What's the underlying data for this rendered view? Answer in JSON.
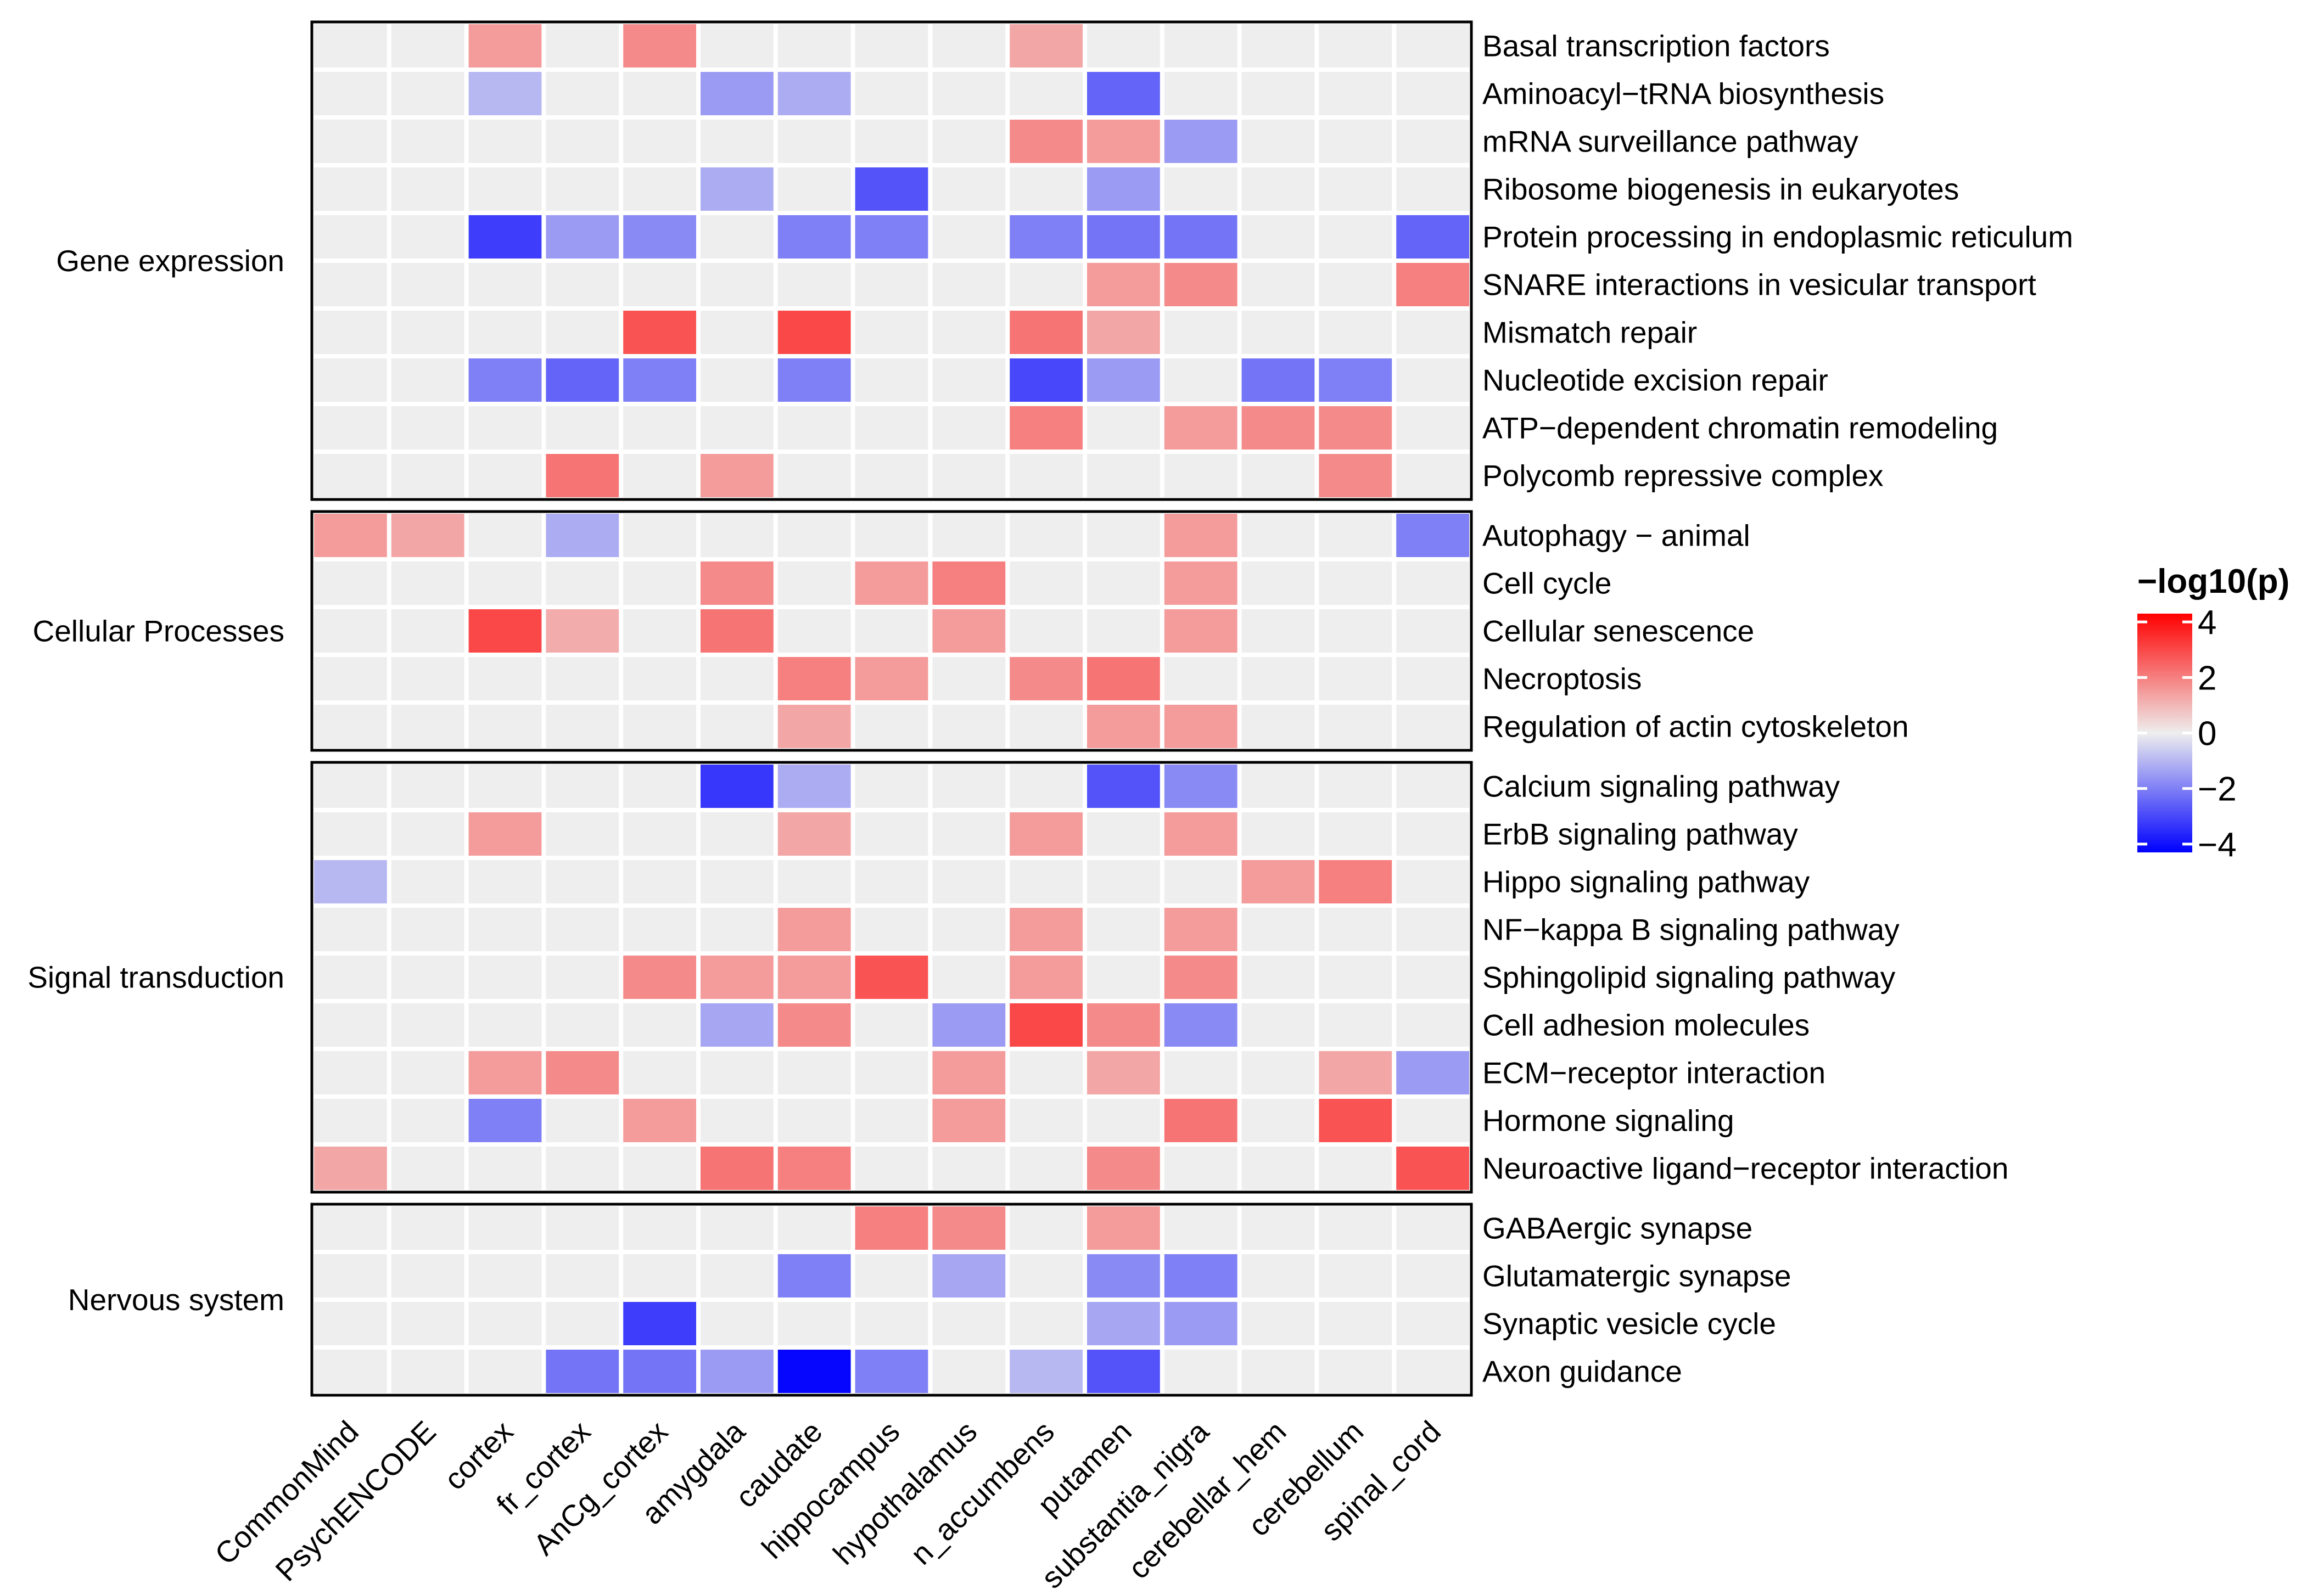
{
  "chart_data": {
    "type": "heatmap",
    "columns": [
      "CommonMind",
      "PsychENCODE",
      "cortex",
      "fr_cortex",
      "AnCg_cortex",
      "amygdala",
      "caudate",
      "hippocampus",
      "hypothalamus",
      "n_accumbens",
      "putamen",
      "substantia_nigra",
      "cerebellar_hem",
      "cerebellum",
      "spinal_cord"
    ],
    "groups": [
      {
        "name": "Gene expression",
        "rows": [
          {
            "name": "Basal transcription factors",
            "values": [
              0,
              0,
              1.5,
              0,
              1.8,
              0,
              0,
              0,
              0,
              1.3,
              0,
              0,
              0,
              0,
              0
            ]
          },
          {
            "name": "Aminoacyl−tRNA biosynthesis",
            "values": [
              0,
              0,
              -1.0,
              0,
              0,
              -1.5,
              -1.2,
              0,
              0,
              0,
              -2.5,
              0,
              0,
              0,
              0
            ]
          },
          {
            "name": "mRNA surveillance pathway",
            "values": [
              0,
              0,
              0,
              0,
              0,
              0,
              0,
              0,
              0,
              1.8,
              1.5,
              -1.5,
              0,
              0,
              0
            ]
          },
          {
            "name": "Ribosome biogenesis in eukaryotes",
            "values": [
              0,
              0,
              0,
              0,
              0,
              -1.2,
              0,
              -2.8,
              0,
              0,
              -1.5,
              0,
              0,
              0,
              0
            ]
          },
          {
            "name": "Protein processing in endoplasmic reticulum",
            "values": [
              0,
              0,
              -3.2,
              -1.5,
              -1.8,
              0,
              -2.0,
              -2.0,
              0,
              -2.0,
              -2.2,
              -2.2,
              0,
              0,
              -2.5
            ]
          },
          {
            "name": "SNARE interactions in vesicular transport",
            "values": [
              0,
              0,
              0,
              0,
              0,
              0,
              0,
              0,
              0,
              0,
              1.5,
              1.8,
              0,
              0,
              2.0
            ]
          },
          {
            "name": "Mismatch repair",
            "values": [
              0,
              0,
              0,
              0,
              2.8,
              0,
              3.0,
              0,
              0,
              2.2,
              1.3,
              0,
              0,
              0,
              0
            ]
          },
          {
            "name": "Nucleotide excision repair",
            "values": [
              0,
              0,
              -2.0,
              -2.5,
              -2.0,
              0,
              -2.0,
              0,
              0,
              -3.0,
              -1.5,
              0,
              -2.2,
              -2.0,
              0
            ]
          },
          {
            "name": "ATP−dependent chromatin remodeling",
            "values": [
              0,
              0,
              0,
              0,
              0,
              0,
              0,
              0,
              0,
              2.0,
              0,
              1.5,
              1.8,
              1.8,
              0
            ]
          },
          {
            "name": "Polycomb repressive complex",
            "values": [
              0,
              0,
              0,
              2.2,
              0,
              1.5,
              0,
              0,
              0,
              0,
              0,
              0,
              0,
              1.8,
              0
            ]
          }
        ]
      },
      {
        "name": "Cellular Processes",
        "rows": [
          {
            "name": "Autophagy − animal",
            "values": [
              1.5,
              1.3,
              0,
              -1.2,
              0,
              0,
              0,
              0,
              0,
              0,
              0,
              1.5,
              0,
              0,
              -2.0
            ]
          },
          {
            "name": "Cell cycle",
            "values": [
              0,
              0,
              0,
              0,
              0,
              1.8,
              0,
              1.5,
              2.0,
              0,
              0,
              1.5,
              0,
              0,
              0
            ]
          },
          {
            "name": "Cellular senescence",
            "values": [
              0,
              0,
              3.0,
              1.2,
              0,
              2.2,
              0,
              0,
              1.5,
              0,
              0,
              1.5,
              0,
              0,
              0
            ]
          },
          {
            "name": "Necroptosis",
            "values": [
              0,
              0,
              0,
              0,
              0,
              0,
              2.0,
              1.5,
              0,
              1.8,
              2.2,
              0,
              0,
              0,
              0
            ]
          },
          {
            "name": "Regulation of actin cytoskeleton",
            "values": [
              0,
              0,
              0,
              0,
              0,
              0,
              1.3,
              0,
              0,
              0,
              1.5,
              1.5,
              0,
              0,
              0
            ]
          }
        ]
      },
      {
        "name": "Signal transduction",
        "rows": [
          {
            "name": "Calcium signaling pathway",
            "values": [
              0,
              0,
              0,
              0,
              0,
              -3.3,
              -1.2,
              0,
              0,
              0,
              -2.8,
              -1.8,
              0,
              0,
              0
            ]
          },
          {
            "name": "ErbB signaling pathway",
            "values": [
              0,
              0,
              1.5,
              0,
              0,
              0,
              1.3,
              0,
              0,
              1.5,
              0,
              1.5,
              0,
              0,
              0
            ]
          },
          {
            "name": "Hippo signaling pathway",
            "values": [
              -1.0,
              0,
              0,
              0,
              0,
              0,
              0,
              0,
              0,
              0,
              0,
              0,
              1.5,
              2.0,
              0
            ]
          },
          {
            "name": "NF−kappa B signaling pathway",
            "values": [
              0,
              0,
              0,
              0,
              0,
              0,
              1.5,
              0,
              0,
              1.5,
              0,
              1.5,
              0,
              0,
              0
            ]
          },
          {
            "name": "Sphingolipid signaling pathway",
            "values": [
              0,
              0,
              0,
              0,
              1.8,
              1.5,
              1.5,
              2.8,
              0,
              1.5,
              0,
              1.8,
              0,
              0,
              0
            ]
          },
          {
            "name": "Cell adhesion molecules",
            "values": [
              0,
              0,
              0,
              0,
              0,
              -1.3,
              1.8,
              0,
              -1.5,
              3.0,
              1.8,
              -1.8,
              0,
              0,
              0
            ]
          },
          {
            "name": "ECM−receptor interaction",
            "values": [
              0,
              0,
              1.5,
              1.8,
              0,
              0,
              0,
              0,
              1.5,
              0,
              1.3,
              0,
              0,
              1.3,
              -1.5
            ]
          },
          {
            "name": "Hormone signaling",
            "values": [
              0,
              0,
              -2.0,
              0,
              1.5,
              0,
              0,
              0,
              1.5,
              0,
              0,
              2.2,
              0,
              2.8,
              0
            ]
          },
          {
            "name": "Neuroactive ligand−receptor interaction",
            "values": [
              1.3,
              0,
              0,
              0,
              0,
              2.2,
              2.0,
              0,
              0,
              0,
              1.8,
              0,
              0,
              0,
              2.8
            ]
          }
        ]
      },
      {
        "name": "Nervous system",
        "rows": [
          {
            "name": "GABAergic synapse",
            "values": [
              0,
              0,
              0,
              0,
              0,
              0,
              0,
              2.0,
              1.8,
              0,
              1.5,
              0,
              0,
              0,
              0
            ]
          },
          {
            "name": "Glutamatergic synapse",
            "values": [
              0,
              0,
              0,
              0,
              0,
              0,
              -2.0,
              0,
              -1.3,
              0,
              -1.8,
              -2.0,
              0,
              0,
              0
            ]
          },
          {
            "name": "Synaptic vesicle cycle",
            "values": [
              0,
              0,
              0,
              0,
              -3.2,
              0,
              0,
              0,
              0,
              0,
              -1.3,
              -1.5,
              0,
              0,
              0
            ]
          },
          {
            "name": "Axon guidance",
            "values": [
              0,
              0,
              0,
              -2.2,
              -2.2,
              -1.5,
              -4.2,
              -2.0,
              0,
              -1.0,
              -2.8,
              0,
              0,
              0,
              0
            ]
          }
        ]
      }
    ],
    "legend": {
      "title": "−log10(p)",
      "ticks": [
        "4",
        "2",
        "0",
        "−2",
        "−4"
      ],
      "range": [
        -4.3,
        4.3
      ],
      "low_color": "#0000ff",
      "mid_color": "#eeeeee",
      "high_color": "#ff0000"
    }
  }
}
